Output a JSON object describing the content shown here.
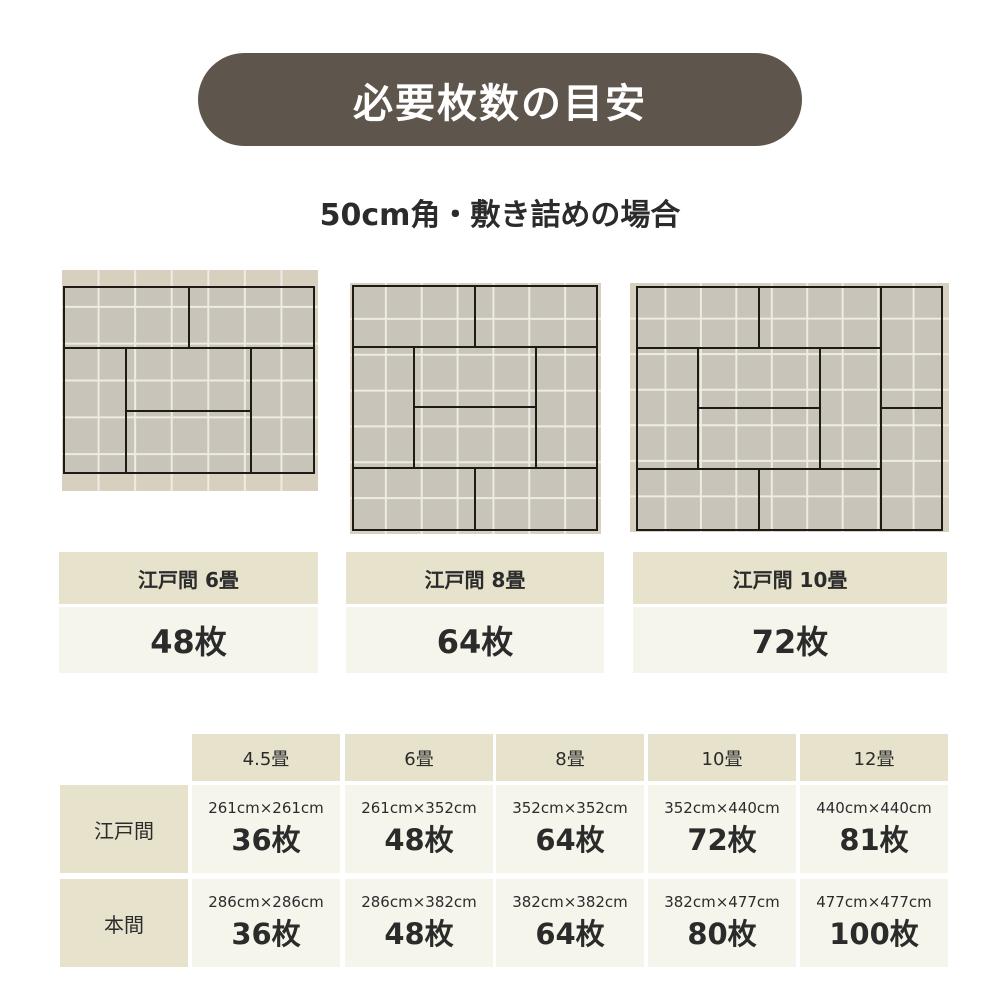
{
  "banner": {
    "title": "必要枚数の目安"
  },
  "subtitle": "50cm角・敷き詰めの場合",
  "colors": {
    "banner": "#5e554c",
    "label_bg": "#e6e2cb",
    "value_bg": "#f6f5ec",
    "tile_area": "#c8c4ba",
    "tile_border": "#d8d0bf"
  },
  "cards": [
    {
      "label": "江戸間 6畳",
      "count": "48枚"
    },
    {
      "label": "江戸間 8畳",
      "count": "64枚"
    },
    {
      "label": "江戸間 10畳",
      "count": "72枚"
    }
  ],
  "table": {
    "columns": [
      "4.5畳",
      "6畳",
      "8畳",
      "10畳",
      "12畳"
    ],
    "rows": [
      {
        "label": "江戸間",
        "cells": [
          {
            "size": "261cm×261cm",
            "count": "36枚"
          },
          {
            "size": "261cm×352cm",
            "count": "48枚"
          },
          {
            "size": "352cm×352cm",
            "count": "64枚"
          },
          {
            "size": "352cm×440cm",
            "count": "72枚"
          },
          {
            "size": "440cm×440cm",
            "count": "81枚"
          }
        ]
      },
      {
        "label": "本間",
        "cells": [
          {
            "size": "286cm×286cm",
            "count": "36枚"
          },
          {
            "size": "286cm×382cm",
            "count": "48枚"
          },
          {
            "size": "382cm×382cm",
            "count": "64枚"
          },
          {
            "size": "382cm×477cm",
            "count": "80枚"
          },
          {
            "size": "477cm×477cm",
            "count": "100枚"
          }
        ]
      }
    ]
  }
}
